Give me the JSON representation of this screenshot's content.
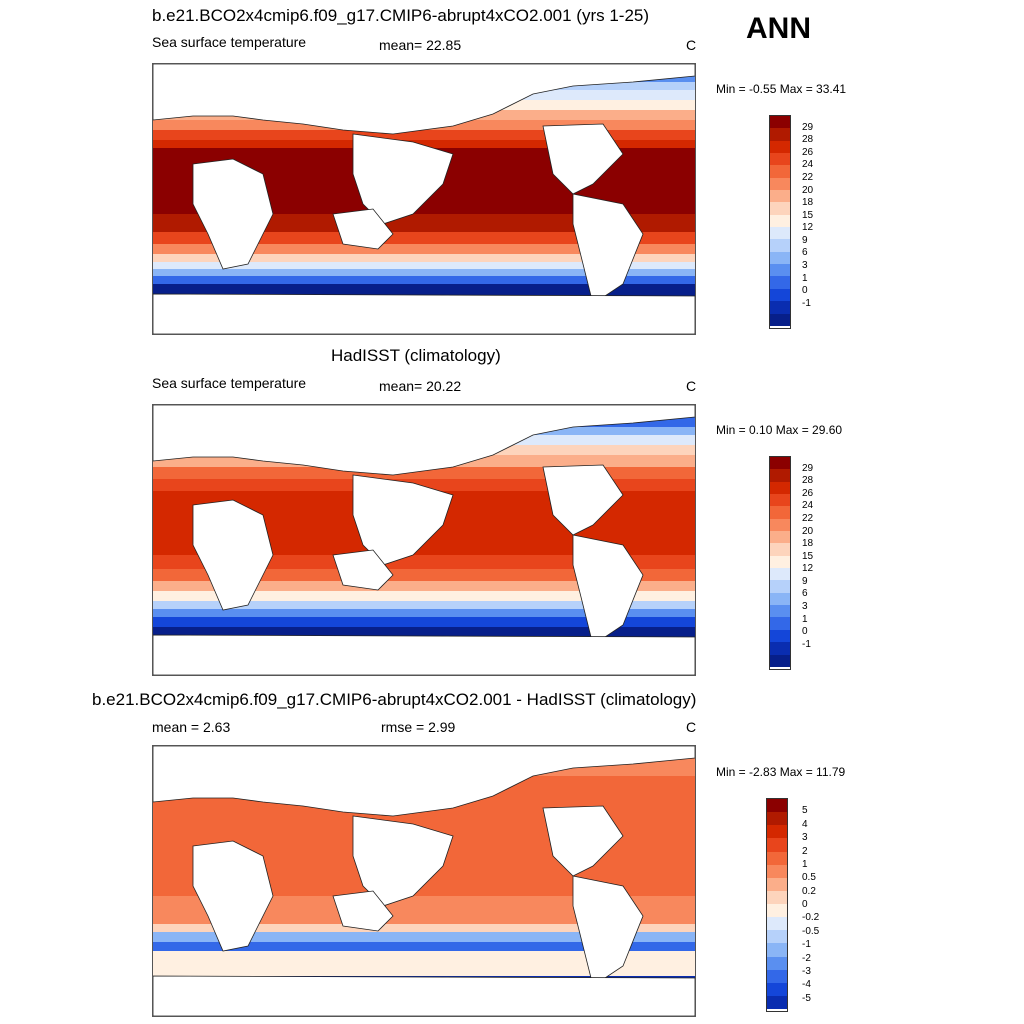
{
  "season": "ANN",
  "panels": [
    {
      "title": "b.e21.BCO2x4cmip6.f09_g17.CMIP6-abrupt4xCO2.001 (yrs 1-25)",
      "left_label": "Sea surface temperature",
      "center_label": "mean=  22.85",
      "unit": "C",
      "minmax": "Min =  -0.55 Max =  33.41",
      "field": "model"
    },
    {
      "title": "HadISST (climatology)",
      "left_label": "Sea surface temperature",
      "center_label": "mean=  20.22",
      "unit": "C",
      "minmax": "Min =   0.10 Max =  29.60",
      "field": "obs"
    },
    {
      "title": "b.e21.BCO2x4cmip6.f09_g17.CMIP6-abrupt4xCO2.001 - HadISST (climatology)",
      "left_label": "mean =   2.63",
      "center_label": "rmse =   2.99",
      "unit": "C",
      "minmax": "Min =  -2.83 Max =  11.79",
      "field": "diff"
    }
  ],
  "colorbars": {
    "sst": {
      "labels": [
        "29",
        "28",
        "26",
        "24",
        "22",
        "20",
        "18",
        "15",
        "12",
        "9",
        "6",
        "3",
        "1",
        "0",
        "-1"
      ],
      "colors": [
        "#8b0000",
        "#b01a00",
        "#d42800",
        "#e8451c",
        "#f26739",
        "#f8885d",
        "#fbae8a",
        "#fdd4bc",
        "#fff0e1",
        "#dde9fb",
        "#b6d1fa",
        "#8ab5f6",
        "#5a8ff0",
        "#3368e8",
        "#1446d9",
        "#0a2db0",
        "#071f8a"
      ]
    },
    "diff": {
      "labels": [
        "5",
        "4",
        "3",
        "2",
        "1",
        "0.5",
        "0.2",
        "0",
        "-0.2",
        "-0.5",
        "-1",
        "-2",
        "-3",
        "-4",
        "-5"
      ],
      "colors": [
        "#8b0000",
        "#b01a00",
        "#d42800",
        "#e8451c",
        "#f26739",
        "#f8885d",
        "#fbae8a",
        "#fdd4bc",
        "#fff0e1",
        "#dde9fb",
        "#b6d1fa",
        "#8ab5f6",
        "#5a8ff0",
        "#3368e8",
        "#1446d9",
        "#0a2db0"
      ]
    }
  }
}
